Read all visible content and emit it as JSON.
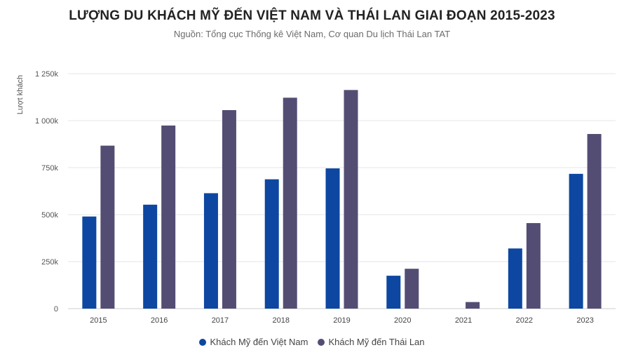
{
  "chart_data": {
    "type": "bar",
    "title": "LƯỢNG DU KHÁCH MỸ ĐẾN VIỆT NAM VÀ THÁI LAN GIAI ĐOẠN 2015-2023",
    "subtitle": "Nguồn: Tổng cục Thống kê Việt Nam, Cơ quan Du lịch Thái Lan TAT",
    "ylabel": "Lượt khách",
    "xlabel": "",
    "categories": [
      "2015",
      "2016",
      "2017",
      "2018",
      "2019",
      "2020",
      "2021",
      "2022",
      "2023"
    ],
    "ylim": [
      0,
      1250
    ],
    "yticks": [
      {
        "value": 0,
        "label": "0"
      },
      {
        "value": 250,
        "label": "250k"
      },
      {
        "value": 500,
        "label": "500k"
      },
      {
        "value": 750,
        "label": "750k"
      },
      {
        "value": 1000,
        "label": "1 000k"
      },
      {
        "value": 1250,
        "label": "1 250k"
      }
    ],
    "grid": true,
    "legend_position": "bottom-center",
    "series": [
      {
        "name": "Khách Mỹ đến Việt Nam",
        "color": "#0d47a1",
        "values": [
          490,
          553,
          614,
          688,
          746,
          175,
          0,
          320,
          717
        ]
      },
      {
        "name": "Khách Mỹ đến Thái Lan",
        "color": "#544d73",
        "values": [
          867,
          974,
          1056,
          1122,
          1163,
          212,
          35,
          455,
          929
        ]
      }
    ]
  }
}
